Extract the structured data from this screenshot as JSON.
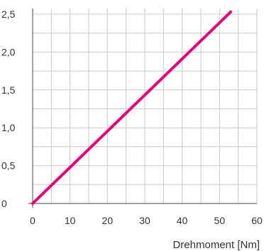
{
  "chart_data": {
    "type": "line",
    "title": "",
    "xlabel": "Drehmoment [Nm]",
    "ylabel": "",
    "xlim": [
      0,
      60
    ],
    "ylim": [
      0,
      2.5
    ],
    "x_ticks": [
      "0",
      "10",
      "20",
      "30",
      "40",
      "50",
      "60"
    ],
    "y_ticks": [
      "0",
      "0,5",
      "1,0",
      "1,5",
      "2,0",
      "2,5"
    ],
    "grid": true,
    "grid_minor_x_step": 5,
    "grid_minor_y_step": 0.25,
    "series": [
      {
        "x": [
          0,
          53
        ],
        "y": [
          0,
          2.53
        ],
        "color": "#e6007e"
      }
    ]
  }
}
